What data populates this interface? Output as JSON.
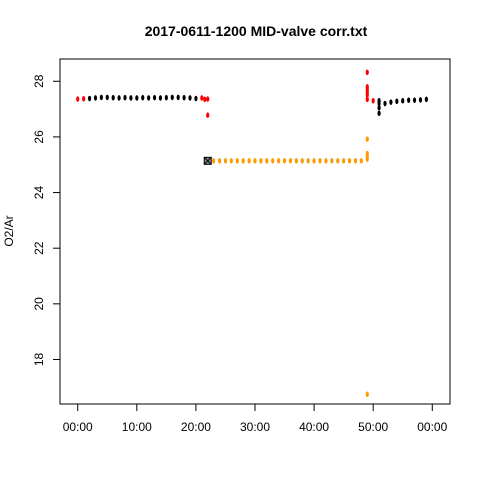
{
  "chart_data": {
    "type": "scatter",
    "title": "2017-0611-1200 MID-valve corr.txt",
    "xlabel": "",
    "ylabel": "O2/Ar",
    "xlim": [
      -3,
      63
    ],
    "ylim": [
      16.4,
      28.8
    ],
    "x_unit": "minutes",
    "x_ticks": [
      0,
      10,
      20,
      30,
      40,
      50,
      60
    ],
    "x_tick_labels": [
      "00:00",
      "10:00",
      "20:00",
      "30:00",
      "40:00",
      "50:00",
      "00:00"
    ],
    "y_ticks": [
      18,
      20,
      22,
      24,
      26,
      28
    ],
    "y_tick_labels": [
      "18",
      "20",
      "22",
      "24",
      "26",
      "28"
    ],
    "grid": false,
    "legend": "none",
    "series": [
      {
        "color": "#000000",
        "points": [
          [
            2.0,
            27.38
          ],
          [
            3.0,
            27.4
          ],
          [
            4.0,
            27.42
          ],
          [
            5.0,
            27.42
          ],
          [
            6.0,
            27.41
          ],
          [
            7.0,
            27.4
          ],
          [
            8.0,
            27.41
          ],
          [
            9.0,
            27.4
          ],
          [
            10.0,
            27.4
          ],
          [
            11.0,
            27.41
          ],
          [
            12.0,
            27.4
          ],
          [
            13.0,
            27.41
          ],
          [
            14.0,
            27.4
          ],
          [
            15.0,
            27.41
          ],
          [
            16.0,
            27.42
          ],
          [
            17.0,
            27.42
          ],
          [
            18.0,
            27.41
          ],
          [
            19.0,
            27.4
          ],
          [
            20.0,
            27.38
          ],
          [
            51.0,
            26.85
          ],
          [
            51.0,
            27.05
          ],
          [
            51.0,
            27.2
          ],
          [
            51.0,
            27.3
          ],
          [
            52.0,
            27.2
          ],
          [
            53.0,
            27.25
          ],
          [
            54.0,
            27.28
          ],
          [
            55.0,
            27.3
          ],
          [
            56.0,
            27.32
          ],
          [
            57.0,
            27.32
          ],
          [
            58.0,
            27.33
          ],
          [
            59.0,
            27.35
          ]
        ]
      },
      {
        "color": "#ff0000",
        "points": [
          [
            0.0,
            27.36
          ],
          [
            1.0,
            27.37
          ],
          [
            21.0,
            27.4
          ],
          [
            21.5,
            27.35
          ],
          [
            22.0,
            27.36
          ],
          [
            22.0,
            26.78
          ],
          [
            49.0,
            28.32
          ],
          [
            49.0,
            27.8
          ],
          [
            49.0,
            27.7
          ],
          [
            49.0,
            27.6
          ],
          [
            49.0,
            27.5
          ],
          [
            49.0,
            27.35
          ],
          [
            50.0,
            27.3
          ]
        ]
      },
      {
        "color": "#ff9900",
        "points": [
          [
            23.0,
            25.14
          ],
          [
            24.0,
            25.14
          ],
          [
            25.0,
            25.14
          ],
          [
            26.0,
            25.14
          ],
          [
            27.0,
            25.14
          ],
          [
            28.0,
            25.14
          ],
          [
            29.0,
            25.14
          ],
          [
            30.0,
            25.14
          ],
          [
            31.0,
            25.14
          ],
          [
            32.0,
            25.14
          ],
          [
            33.0,
            25.14
          ],
          [
            34.0,
            25.14
          ],
          [
            35.0,
            25.14
          ],
          [
            36.0,
            25.14
          ],
          [
            37.0,
            25.14
          ],
          [
            38.0,
            25.14
          ],
          [
            39.0,
            25.14
          ],
          [
            40.0,
            25.14
          ],
          [
            41.0,
            25.14
          ],
          [
            42.0,
            25.14
          ],
          [
            43.0,
            25.14
          ],
          [
            44.0,
            25.14
          ],
          [
            45.0,
            25.14
          ],
          [
            46.0,
            25.14
          ],
          [
            47.0,
            25.14
          ],
          [
            48.0,
            25.14
          ],
          [
            49.0,
            25.92
          ],
          [
            49.0,
            25.4
          ],
          [
            49.0,
            25.3
          ],
          [
            49.0,
            25.2
          ],
          [
            49.0,
            16.75
          ]
        ]
      }
    ],
    "annotations": [
      {
        "type": "boxed-x-marker",
        "x": 22.0,
        "y": 25.14,
        "fill": "#888888",
        "stroke": "#000000"
      }
    ]
  }
}
